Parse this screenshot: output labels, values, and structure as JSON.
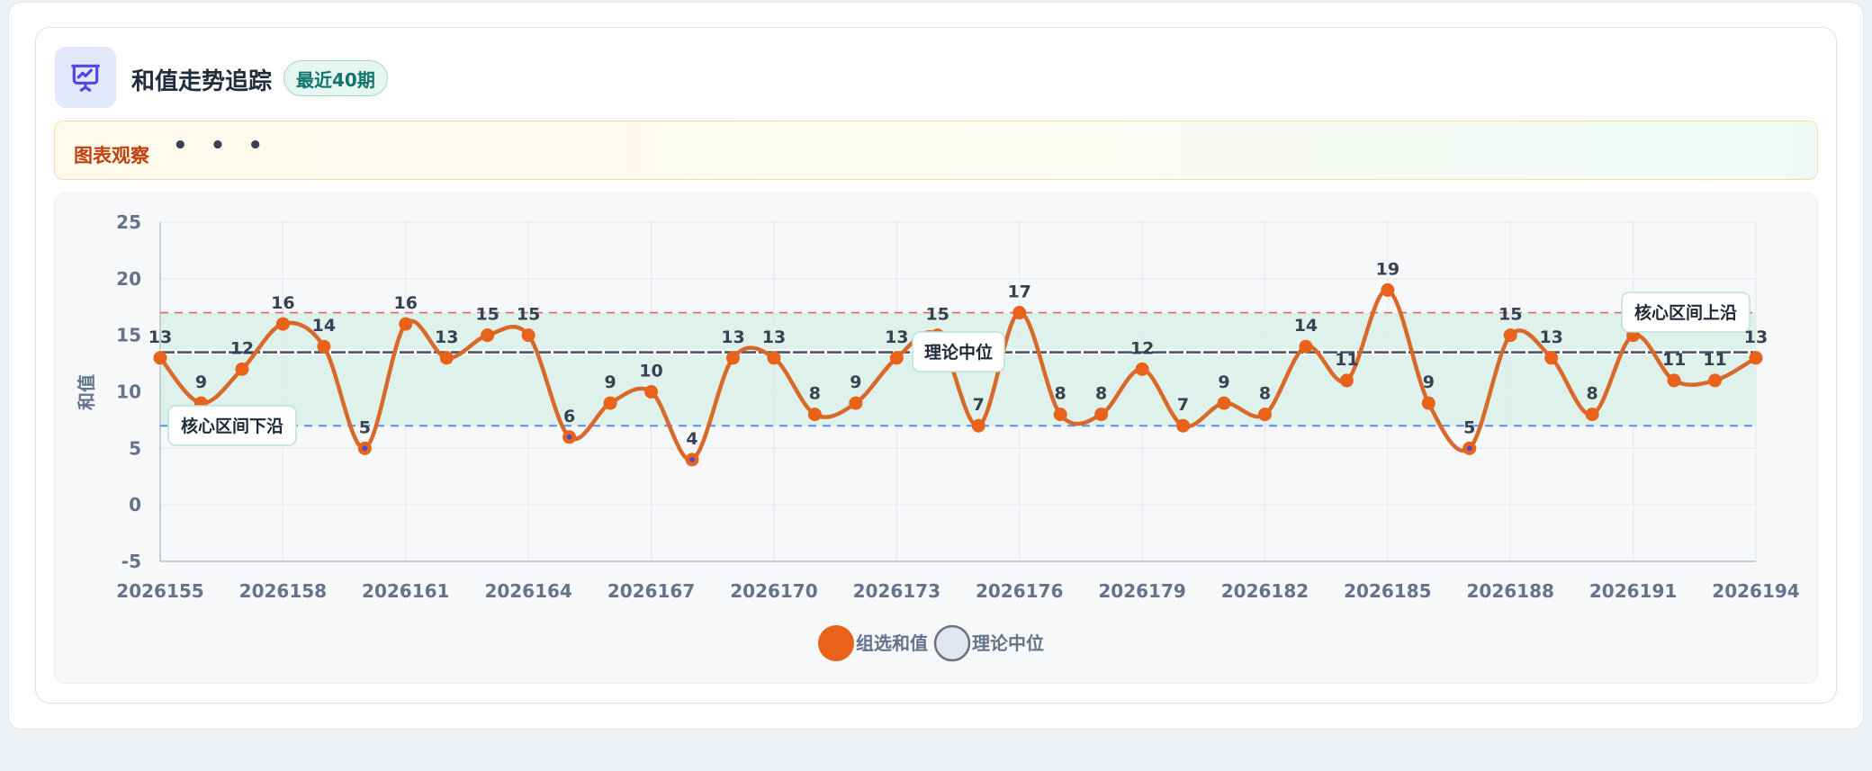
{
  "header": {
    "title": "和值走势追踪",
    "badge": "最近40期"
  },
  "insight": {
    "label": "图表观察",
    "dots": "• • •"
  },
  "colors": {
    "series": "#e8621a",
    "line": "#d9692a",
    "median_line": "#475569",
    "upper_bound": "#e06666",
    "lower_bound": "#5b8ff9",
    "band_fill": "#d5efe4",
    "low_marker": "#3b4fd8"
  },
  "chart_data": {
    "type": "line",
    "title": "",
    "xlabel": "",
    "ylabel": "和值",
    "ylim": [
      -5,
      25
    ],
    "yticks": [
      -5,
      0,
      5,
      10,
      15,
      20,
      25
    ],
    "xticks": [
      "2026155",
      "2026158",
      "2026161",
      "2026164",
      "2026167",
      "2026170",
      "2026173",
      "2026176",
      "2026179",
      "2026182",
      "2026185",
      "2026188",
      "2026191",
      "2026194"
    ],
    "categories": [
      "2026155",
      "2026156",
      "2026157",
      "2026158",
      "2026159",
      "2026160",
      "2026161",
      "2026162",
      "2026163",
      "2026164",
      "2026165",
      "2026166",
      "2026167",
      "2026168",
      "2026169",
      "2026170",
      "2026171",
      "2026172",
      "2026173",
      "2026174",
      "2026175",
      "2026176",
      "2026177",
      "2026178",
      "2026179",
      "2026180",
      "2026181",
      "2026182",
      "2026183",
      "2026184",
      "2026185",
      "2026186",
      "2026187",
      "2026188",
      "2026189",
      "2026190",
      "2026191",
      "2026192",
      "2026193",
      "2026194"
    ],
    "series": [
      {
        "name": "组选和值",
        "values": [
          13,
          9,
          12,
          16,
          14,
          5,
          16,
          13,
          15,
          15,
          6,
          9,
          10,
          4,
          13,
          13,
          8,
          9,
          13,
          15,
          7,
          17,
          8,
          8,
          12,
          7,
          9,
          8,
          14,
          11,
          19,
          9,
          5,
          15,
          13,
          8,
          15,
          11,
          11,
          13
        ]
      },
      {
        "name": "理论中位",
        "values": [
          13.5,
          13.5,
          13.5,
          13.5,
          13.5,
          13.5,
          13.5,
          13.5,
          13.5,
          13.5,
          13.5,
          13.5,
          13.5,
          13.5,
          13.5,
          13.5,
          13.5,
          13.5,
          13.5,
          13.5,
          13.5,
          13.5,
          13.5,
          13.5,
          13.5,
          13.5,
          13.5,
          13.5,
          13.5,
          13.5,
          13.5,
          13.5,
          13.5,
          13.5,
          13.5,
          13.5,
          13.5,
          13.5,
          13.5,
          13.5
        ]
      }
    ],
    "reference_band": {
      "lower": 7,
      "upper": 17
    },
    "annotations": {
      "lower": "核心区间下沿",
      "median": "理论中位",
      "upper": "核心区间上沿"
    },
    "grid": true,
    "legend_position": "bottom-center"
  }
}
